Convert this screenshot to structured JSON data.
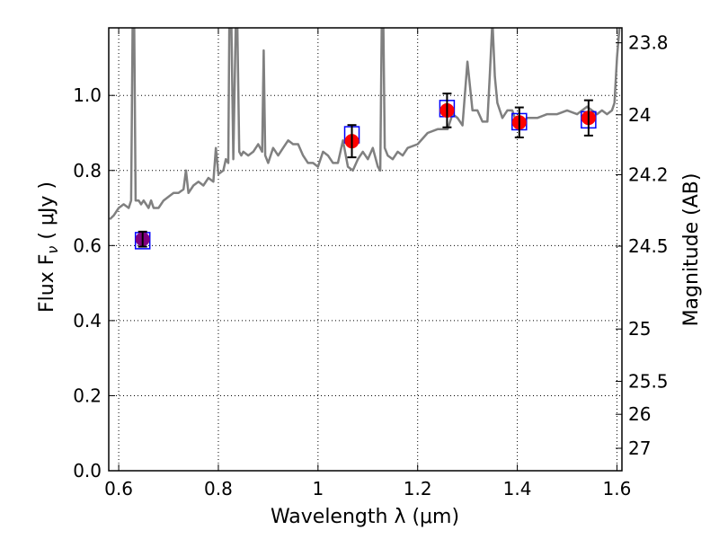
{
  "chart_data": {
    "type": "scatter",
    "xlabel": "Wavelength  λ (μm)",
    "ylabel": "Flux  F",
    "ylabel_sub": "ν",
    "ylabel_unit": "  ( μJy )",
    "y2label": "Magnitude (AB)",
    "xlim": [
      0.58,
      1.61
    ],
    "ylim": [
      0.0,
      1.18
    ],
    "grid": true,
    "grid_style": "dotted",
    "x_ticks": [
      0.6,
      0.8,
      1.0,
      1.2,
      1.4,
      1.6
    ],
    "x_tick_labels": [
      "0.6",
      "0.8",
      "1",
      "1.2",
      "1.4",
      "1.6"
    ],
    "y_ticks": [
      0.0,
      0.2,
      0.4,
      0.6,
      0.8,
      1.0
    ],
    "y_tick_labels": [
      "0.0",
      "0.2",
      "0.4",
      "0.6",
      "0.8",
      "1.0"
    ],
    "y2_ticks": [
      {
        "label": "23.8",
        "flux": 1.1402
      },
      {
        "label": "24",
        "flux": 0.9484
      },
      {
        "label": "24.2",
        "flux": 0.7888
      },
      {
        "label": "24.5",
        "flux": 0.5984
      },
      {
        "label": "25",
        "flux": 0.3776
      },
      {
        "label": "25.5",
        "flux": 0.2382
      },
      {
        "label": "26",
        "flux": 0.1503
      },
      {
        "label": "27",
        "flux": 0.0598
      }
    ],
    "model_spectrum": {
      "color": "#808080",
      "x": [
        0.582,
        0.59,
        0.6,
        0.61,
        0.62,
        0.625,
        0.628,
        0.631,
        0.634,
        0.637,
        0.64,
        0.645,
        0.65,
        0.66,
        0.665,
        0.67,
        0.68,
        0.69,
        0.7,
        0.71,
        0.72,
        0.73,
        0.735,
        0.74,
        0.75,
        0.76,
        0.77,
        0.78,
        0.79,
        0.795,
        0.8,
        0.81,
        0.815,
        0.82,
        0.822,
        0.826,
        0.83,
        0.835,
        0.838,
        0.842,
        0.846,
        0.85,
        0.86,
        0.87,
        0.88,
        0.888,
        0.891,
        0.894,
        0.9,
        0.91,
        0.92,
        0.93,
        0.94,
        0.95,
        0.96,
        0.97,
        0.98,
        0.99,
        1.0,
        1.01,
        1.02,
        1.03,
        1.04,
        1.05,
        1.06,
        1.07,
        1.08,
        1.09,
        1.1,
        1.11,
        1.12,
        1.125,
        1.128,
        1.131,
        1.134,
        1.14,
        1.15,
        1.16,
        1.17,
        1.18,
        1.2,
        1.22,
        1.24,
        1.26,
        1.27,
        1.28,
        1.29,
        1.3,
        1.31,
        1.32,
        1.33,
        1.34,
        1.345,
        1.35,
        1.355,
        1.36,
        1.37,
        1.38,
        1.39,
        1.4,
        1.41,
        1.42,
        1.44,
        1.46,
        1.48,
        1.5,
        1.52,
        1.54,
        1.56,
        1.57,
        1.58,
        1.59,
        1.595,
        1.6,
        1.605
      ],
      "y": [
        0.67,
        0.68,
        0.7,
        0.71,
        0.7,
        0.72,
        1.2,
        1.2,
        0.72,
        0.72,
        0.72,
        0.71,
        0.72,
        0.7,
        0.72,
        0.7,
        0.7,
        0.72,
        0.73,
        0.74,
        0.74,
        0.75,
        0.8,
        0.74,
        0.76,
        0.77,
        0.76,
        0.78,
        0.77,
        0.86,
        0.79,
        0.8,
        0.83,
        0.82,
        1.2,
        1.2,
        0.83,
        1.2,
        1.2,
        0.85,
        0.84,
        0.85,
        0.84,
        0.85,
        0.87,
        0.85,
        1.12,
        0.84,
        0.82,
        0.86,
        0.84,
        0.86,
        0.88,
        0.87,
        0.87,
        0.84,
        0.82,
        0.82,
        0.81,
        0.85,
        0.84,
        0.82,
        0.82,
        0.88,
        0.81,
        0.8,
        0.83,
        0.85,
        0.83,
        0.86,
        0.81,
        0.8,
        1.2,
        1.2,
        0.86,
        0.84,
        0.83,
        0.85,
        0.84,
        0.86,
        0.87,
        0.9,
        0.91,
        0.91,
        0.95,
        0.94,
        0.92,
        1.09,
        0.96,
        0.96,
        0.93,
        0.93,
        1.06,
        1.2,
        1.05,
        0.98,
        0.94,
        0.96,
        0.96,
        0.92,
        0.93,
        0.94,
        0.94,
        0.95,
        0.95,
        0.96,
        0.95,
        0.97,
        0.95,
        0.96,
        0.95,
        0.96,
        0.98,
        1.1,
        1.18
      ]
    },
    "series": [
      {
        "marker": "circle",
        "color": "#ff0000",
        "x": [
          0.648,
          1.068,
          1.259,
          1.404,
          1.543
        ],
        "y": [
          0.617,
          0.878,
          0.96,
          0.928,
          0.94
        ],
        "yerr": [
          0.02,
          0.043,
          0.045,
          0.04,
          0.047
        ]
      },
      {
        "marker": "square",
        "color": "#0000ff",
        "x": [
          0.648,
          1.068,
          1.259,
          1.404,
          1.543
        ],
        "y": [
          0.613,
          0.895,
          0.965,
          0.93,
          0.935
        ]
      }
    ],
    "colors": {
      "model": "#808080",
      "point": "#ff0000",
      "box": "#0000ff",
      "errorbar": "#000000",
      "overlap": "#800080"
    }
  }
}
